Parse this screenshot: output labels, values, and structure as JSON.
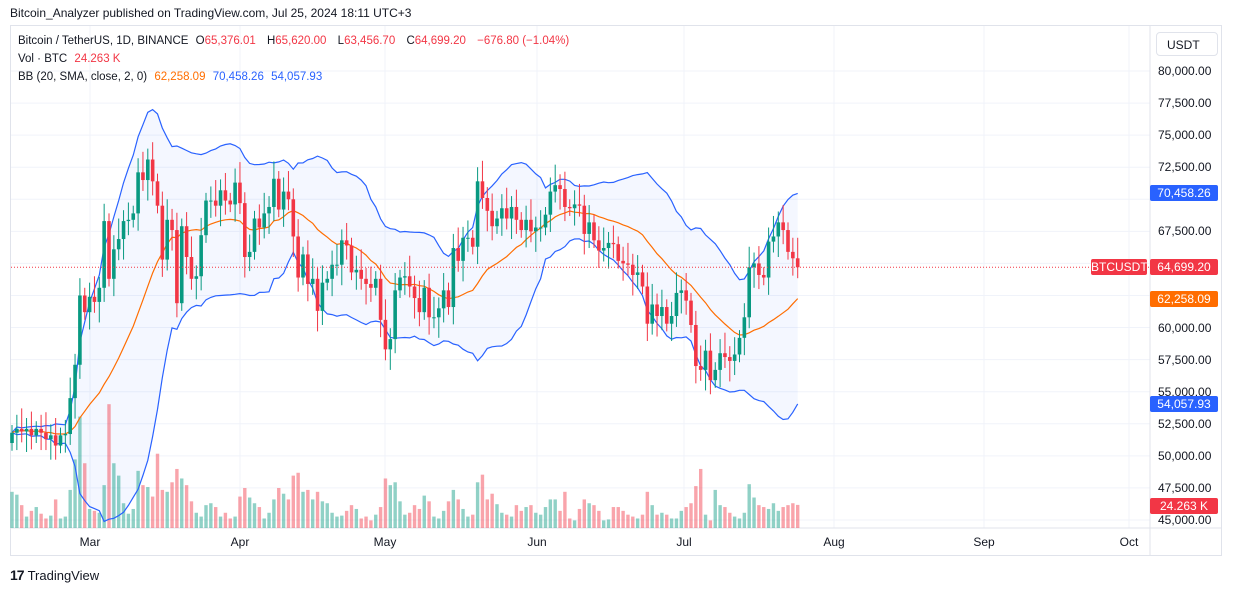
{
  "header": {
    "published": "Bitcoin_Analyzer published on TradingView.com, Jul 25, 2024 18:11 UTC+3"
  },
  "legend": {
    "symbol": "Bitcoin / TetherUS, 1D, BINANCE",
    "o_label": "O",
    "o": "65,376.01",
    "h_label": "H",
    "h": "65,620.00",
    "l_label": "L",
    "l": "63,456.70",
    "c_label": "C",
    "c": "64,699.20",
    "change": "−676.80 (−1.04%)",
    "vol_label": "Vol · BTC",
    "vol": "24.263 K",
    "bb_label": "BB (20, SMA, close, 2, 0)",
    "bb_basis": "62,258.09",
    "bb_upper": "70,458.26",
    "bb_lower": "54,057.93"
  },
  "price_axis": {
    "unit": "USDT",
    "ticks": [
      "80,000.00",
      "77,500.00",
      "75,000.00",
      "72,500.00",
      "67,500.00",
      "60,000.00",
      "57,500.00",
      "55,000.00",
      "52,500.00",
      "50,000.00",
      "47,500.00",
      "45,000.00"
    ],
    "tick_values": [
      80000,
      77500,
      75000,
      72500,
      67500,
      60000,
      57500,
      55000,
      52500,
      50000,
      47500,
      45000
    ],
    "tags": {
      "upper": "70,458.26",
      "upper_value": 70458.26,
      "symbol": "BTCUSDT",
      "last": "64,699.20",
      "last_value": 64699.2,
      "basis": "62,258.09",
      "basis_value": 62258.09,
      "lower": "54,057.93",
      "lower_value": 54057.93,
      "volume": "24.263 K"
    }
  },
  "time_axis": {
    "labels": [
      "Mar",
      "Apr",
      "May",
      "Jun",
      "Jul",
      "Aug",
      "Sep",
      "Oct"
    ]
  },
  "footer": {
    "brand": "TradingView",
    "brand_mark": "17"
  },
  "colors": {
    "up": "#089981",
    "down": "#f23645",
    "basis": "#ff6d00",
    "band": "#2962ff",
    "band_fill": "#2962ff"
  },
  "chart_data": {
    "type": "candlestick",
    "title": "Bitcoin / TetherUS, 1D, BINANCE",
    "start_date": "2024-02-14",
    "end_date": "2024-07-25",
    "ylim": [
      45000,
      81500
    ],
    "close_k": [
      51.8,
      52.1,
      51.9,
      52.1,
      51.6,
      52.1,
      51.8,
      51.3,
      51.6,
      50.8,
      51.6,
      51.7,
      54.5,
      57.1,
      62.5,
      61.2,
      62.4,
      62.0,
      63.1,
      68.3,
      63.8,
      66.1,
      66.9,
      68.3,
      68.4,
      68.9,
      72.1,
      71.5,
      73.1,
      71.4,
      69.5,
      65.3,
      68.4,
      67.6,
      61.9,
      67.9,
      65.5,
      63.8,
      64.0,
      67.2,
      69.9,
      69.9,
      69.5,
      70.7,
      69.9,
      69.6,
      71.3,
      69.7,
      65.5,
      65.9,
      68.5,
      67.8,
      68.9,
      69.4,
      71.6,
      69.2,
      70.6,
      70.0,
      67.1,
      63.9,
      65.7,
      63.4,
      63.8,
      61.3,
      63.5,
      63.8,
      64.9,
      64.9,
      66.8,
      66.4,
      64.3,
      64.5,
      63.8,
      63.4,
      63.1,
      63.8,
      60.6,
      58.3,
      59.1,
      62.9,
      63.9,
      64.0,
      63.2,
      62.3,
      61.2,
      63.1,
      60.8,
      60.8,
      61.5,
      62.9,
      61.6,
      66.2,
      65.2,
      67.0,
      67.0,
      66.3,
      71.4,
      70.1,
      69.1,
      67.9,
      68.5,
      69.3,
      68.5,
      69.4,
      68.4,
      67.6,
      68.4,
      67.5,
      67.8,
      67.8,
      68.8,
      70.6,
      71.1,
      70.8,
      69.4,
      69.3,
      69.6,
      69.5,
      67.3,
      68.2,
      66.8,
      66.0,
      66.2,
      66.6,
      66.5,
      65.2,
      65.0,
      64.9,
      64.1,
      64.3,
      63.2,
      60.3,
      61.8,
      60.9,
      61.6,
      60.3,
      60.9,
      62.7,
      62.9,
      62.1,
      60.2,
      57.0,
      56.7,
      58.2,
      55.9,
      56.7,
      58.0,
      57.7,
      57.4,
      57.9,
      59.2,
      60.8,
      64.7,
      65.0,
      64.1,
      63.9,
      66.7,
      67.1,
      68.2,
      67.6,
      65.9,
      65.4,
      64.699
    ],
    "first_open_k": 51.0,
    "volume_k": [
      38,
      35,
      24,
      12,
      18,
      22,
      15,
      10,
      13,
      30,
      10,
      12,
      40,
      72,
      117,
      68,
      20,
      18,
      16,
      45,
      130,
      68,
      55,
      26,
      15,
      20,
      60,
      45,
      43,
      33,
      78,
      40,
      38,
      48,
      62,
      52,
      45,
      28,
      16,
      12,
      24,
      26,
      22,
      12,
      16,
      10,
      12,
      33,
      42,
      32,
      26,
      22,
      10,
      16,
      30,
      42,
      36,
      30,
      55,
      58,
      38,
      40,
      30,
      38,
      28,
      26,
      16,
      12,
      13,
      18,
      24,
      20,
      10,
      12,
      8,
      14,
      22,
      52,
      45,
      48,
      28,
      14,
      16,
      24,
      20,
      34,
      28,
      12,
      10,
      18,
      28,
      40,
      30,
      20,
      12,
      14,
      48,
      56,
      30,
      36,
      25,
      16,
      14,
      12,
      24,
      18,
      22,
      24,
      16,
      14,
      22,
      30,
      30,
      18,
      38,
      10,
      8,
      20,
      30,
      26,
      24,
      18,
      8,
      9,
      22,
      22,
      18,
      14,
      12,
      10,
      14,
      38,
      24,
      14,
      16,
      14,
      10,
      10,
      18,
      22,
      26,
      44,
      62,
      14,
      8,
      40,
      24,
      22,
      16,
      12,
      10,
      16,
      46,
      32,
      24,
      22,
      20,
      26,
      18,
      22,
      24,
      26,
      24.263
    ],
    "indicator": {
      "name": "Bollinger Bands",
      "length": 20,
      "stdev": 2,
      "last_basis": 62258.09,
      "last_upper": 70458.26,
      "last_lower": 54057.93
    }
  }
}
